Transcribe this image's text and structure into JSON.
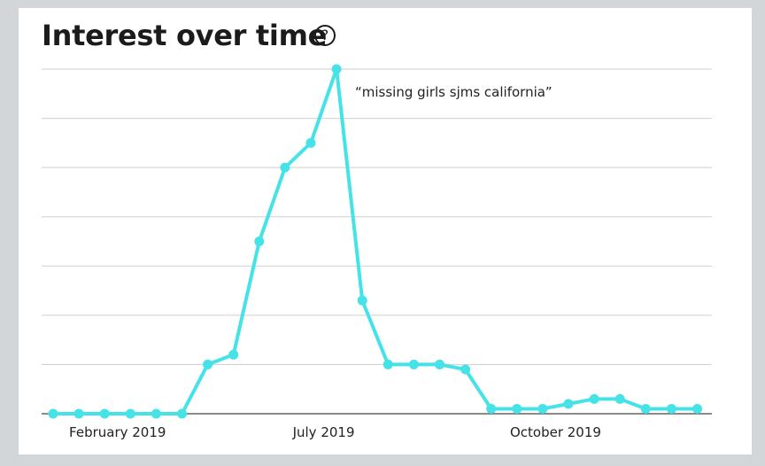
{
  "title": "Interest over time",
  "help_icon": "question-circle-icon",
  "help_glyph": "?",
  "chart_data": {
    "type": "line",
    "title": "Interest over time",
    "xlabel": "",
    "ylabel": "",
    "x_tick_labels": [
      {
        "label": "February 2019",
        "index": 2.5
      },
      {
        "label": "July 2019",
        "index": 10.5
      },
      {
        "label": "October 2019",
        "index": 19.5
      }
    ],
    "ylim": [
      0,
      70
    ],
    "grid": true,
    "series": [
      {
        "name": "“missing girls sjms california”",
        "color": "#45e3e8",
        "values": [
          0,
          0,
          0,
          0,
          0,
          0,
          10,
          12,
          35,
          50,
          55,
          70,
          23,
          10,
          10,
          10,
          9,
          1,
          1,
          1,
          2,
          3,
          3,
          1,
          1,
          1
        ]
      }
    ]
  }
}
